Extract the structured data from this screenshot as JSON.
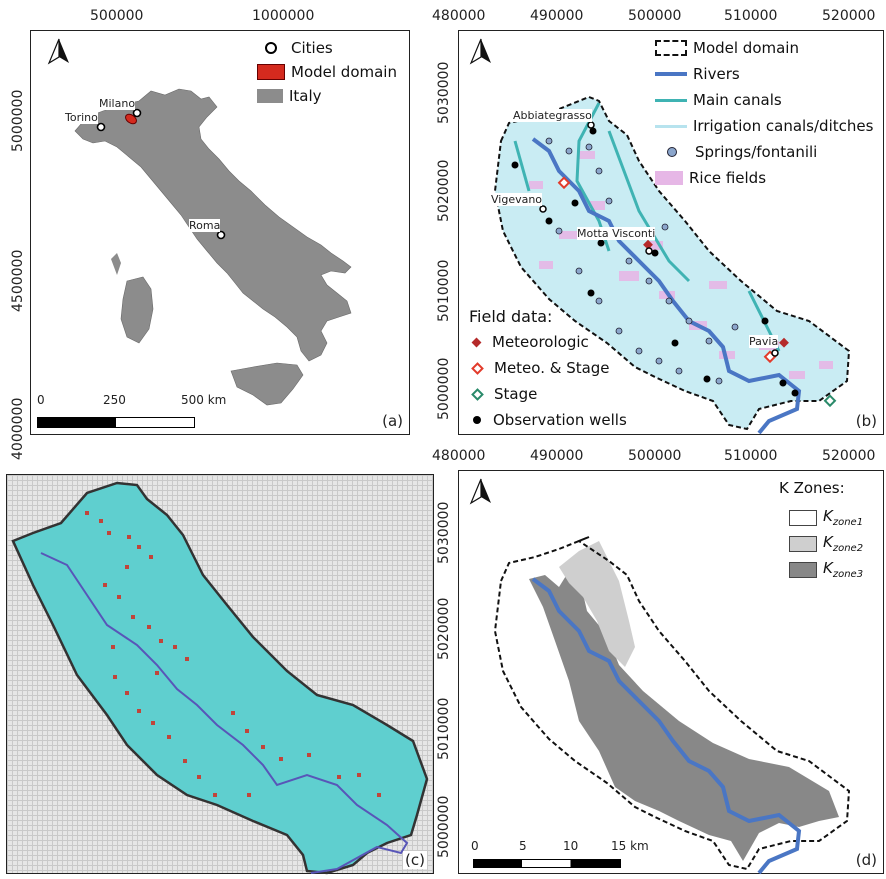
{
  "panel_a": {
    "top_ticks": [
      "500000",
      "1000000"
    ],
    "left_ticks": [
      "5000000",
      "4500000",
      "4000000"
    ],
    "legend": {
      "cities": "Cities",
      "model_domain": "Model domain",
      "italy": "Italy"
    },
    "cities": [
      "Milano",
      "Torino",
      "Roma"
    ],
    "scalebar": {
      "l0": "0",
      "l1": "250",
      "l2": "500 km"
    },
    "tag": "(a)",
    "colors": {
      "italy": "#8c8c8c",
      "domain": "#d42a1e"
    }
  },
  "panel_b": {
    "top_ticks": [
      "480000",
      "490000",
      "500000",
      "510000",
      "520000"
    ],
    "left_ticks": [
      "5030000",
      "5020000",
      "5010000",
      "5000000"
    ],
    "legend": [
      "Model domain",
      "Rivers",
      "Main canals",
      "Irrigation canals/ditches",
      "Springs/fontanili",
      "Rice fields"
    ],
    "towns": [
      "Abbiategrasso",
      "Vigevano",
      "Motta Visconti",
      "Pavia"
    ],
    "field_title": "Field data:",
    "field_items": [
      "Meteorologic",
      "Meteo. & Stage",
      "Stage",
      "Observation wells"
    ],
    "tag": "(b)",
    "colors": {
      "river": "#4a76c4",
      "main_canal": "#3fb3b3",
      "ditch": "#b7e3ee",
      "rice": "#e6b7e6",
      "spring": "#8ba6cc"
    }
  },
  "panel_c": {
    "tag": "(c)",
    "colors": {
      "domain": "#5fcfcf",
      "grid": "#c9c9c9",
      "cells": "#c0453a",
      "river": "#5856b8"
    }
  },
  "panel_d": {
    "bottom_ticks": [
      "480000",
      "490000",
      "500000",
      "510000",
      "520000"
    ],
    "left_ticks": [
      "5030000",
      "5020000",
      "5010000",
      "5000000"
    ],
    "legend_title": "K Zones:",
    "zones": [
      {
        "k": "K",
        "sub": "zone1",
        "color": "#ffffff"
      },
      {
        "k": "K",
        "sub": "zone2",
        "color": "#cfcfcf"
      },
      {
        "k": "K",
        "sub": "zone3",
        "color": "#888888"
      }
    ],
    "scalebar": {
      "l0": "0",
      "l1": "5",
      "l2": "10",
      "l3": "15 km"
    },
    "tag": "(d)"
  }
}
